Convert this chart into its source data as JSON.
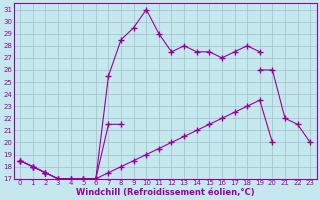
{
  "xlabel": "Windchill (Refroidissement éolien,°C)",
  "bg_color": "#c5e8ee",
  "line_color": "#990099",
  "grid_color": "#9fbfc8",
  "xlim": [
    -0.5,
    23.5
  ],
  "ylim": [
    17,
    31.5
  ],
  "yticks": [
    17,
    18,
    19,
    20,
    21,
    22,
    23,
    24,
    25,
    26,
    27,
    28,
    29,
    30,
    31
  ],
  "xticks": [
    0,
    1,
    2,
    3,
    4,
    5,
    6,
    7,
    8,
    9,
    10,
    11,
    12,
    13,
    14,
    15,
    16,
    17,
    18,
    19,
    20,
    21,
    22,
    23
  ],
  "line1_y": [
    18.5,
    18.0,
    17.5,
    17.0,
    17.0,
    17.0,
    17.0,
    25.5,
    28.5,
    29.5,
    31.0,
    29.0,
    27.5,
    28.0,
    27.5,
    27.5,
    27.0,
    27.5,
    28.0,
    27.5,
    null,
    null,
    null,
    null
  ],
  "line2_y": [
    18.5,
    18.0,
    17.5,
    17.0,
    17.0,
    17.0,
    17.0,
    21.5,
    21.5,
    null,
    null,
    null,
    null,
    null,
    null,
    null,
    null,
    null,
    null,
    26.0,
    26.0,
    22.0,
    21.5,
    20.0
  ],
  "line3_y": [
    18.5,
    18.0,
    17.5,
    17.0,
    17.0,
    17.0,
    17.0,
    17.5,
    18.0,
    18.5,
    19.0,
    19.5,
    20.0,
    20.5,
    21.0,
    21.5,
    22.0,
    22.5,
    23.0,
    23.5,
    20.0,
    null,
    null,
    null
  ]
}
